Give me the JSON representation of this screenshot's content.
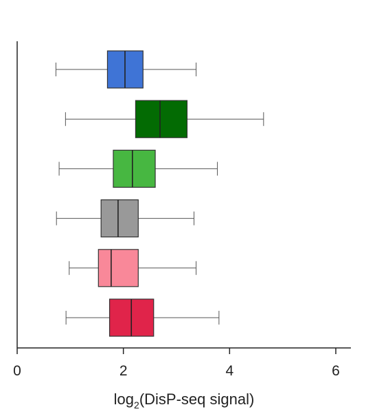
{
  "chart_data": {
    "type": "boxplot",
    "orientation": "horizontal",
    "title": "",
    "xlabel": {
      "prefix": "log",
      "subscript": "2",
      "suffix": "(DisP-seq signal)"
    },
    "ylabel": "",
    "xlim": [
      0,
      6.3
    ],
    "xticks": [
      0,
      2,
      4,
      6
    ],
    "xtick_labels": [
      "0",
      "2",
      "4",
      "6"
    ],
    "grid": false,
    "legend": "none",
    "boxes": [
      {
        "color": "#3f74d6",
        "whisker_low": 0.73,
        "q1": 1.7,
        "median": 2.03,
        "q3": 2.37,
        "whisker_high": 3.37
      },
      {
        "color": "#036b03",
        "whisker_low": 0.91,
        "q1": 2.23,
        "median": 2.69,
        "q3": 3.2,
        "whisker_high": 4.64
      },
      {
        "color": "#47b741",
        "whisker_low": 0.79,
        "q1": 1.81,
        "median": 2.17,
        "q3": 2.6,
        "whisker_high": 3.77
      },
      {
        "color": "#999999",
        "whisker_low": 0.74,
        "q1": 1.58,
        "median": 1.9,
        "q3": 2.28,
        "whisker_high": 3.33
      },
      {
        "color": "#f98899",
        "whisker_low": 0.98,
        "q1": 1.53,
        "median": 1.77,
        "q3": 2.28,
        "whisker_high": 3.37
      },
      {
        "color": "#e0244a",
        "whisker_low": 0.92,
        "q1": 1.74,
        "median": 2.15,
        "q3": 2.57,
        "whisker_high": 3.8
      }
    ]
  }
}
